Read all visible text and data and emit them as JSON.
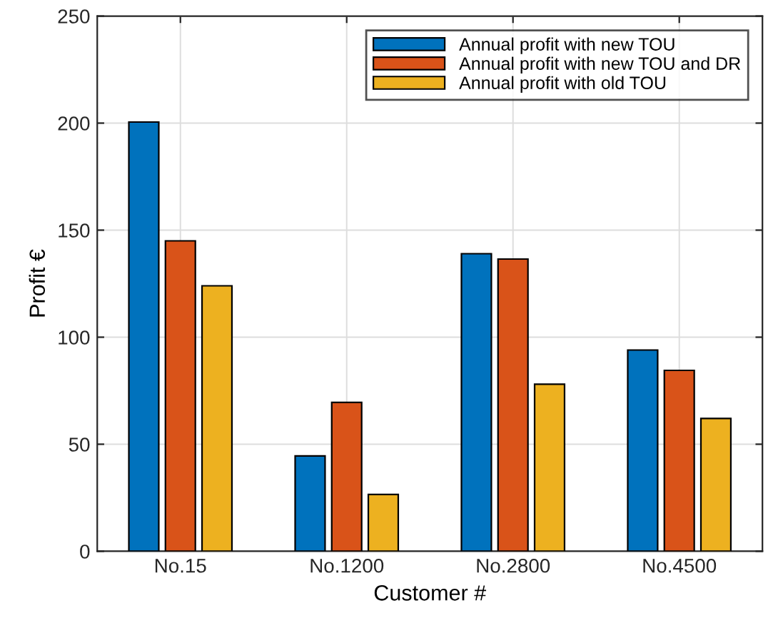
{
  "chart_data": {
    "type": "bar",
    "xlabel": "Customer #",
    "ylabel": "Profit €",
    "categories": [
      "No.15",
      "No.1200",
      "No.2800",
      "No.4500"
    ],
    "series": [
      {
        "name": "Annual profit with new TOU",
        "color": "#0072bd",
        "values": [
          200.5,
          44.5,
          139,
          94
        ]
      },
      {
        "name": "Annual profit with new TOU and DR",
        "color": "#d95319",
        "values": [
          145,
          69.5,
          136.5,
          84.5
        ]
      },
      {
        "name": "Annual profit with old TOU",
        "color": "#edb120",
        "values": [
          124,
          26.5,
          78,
          62
        ]
      }
    ],
    "ylim": [
      0,
      250
    ],
    "yticks": [
      0,
      50,
      100,
      150,
      200,
      250
    ],
    "grid": true,
    "legend": "top right"
  }
}
